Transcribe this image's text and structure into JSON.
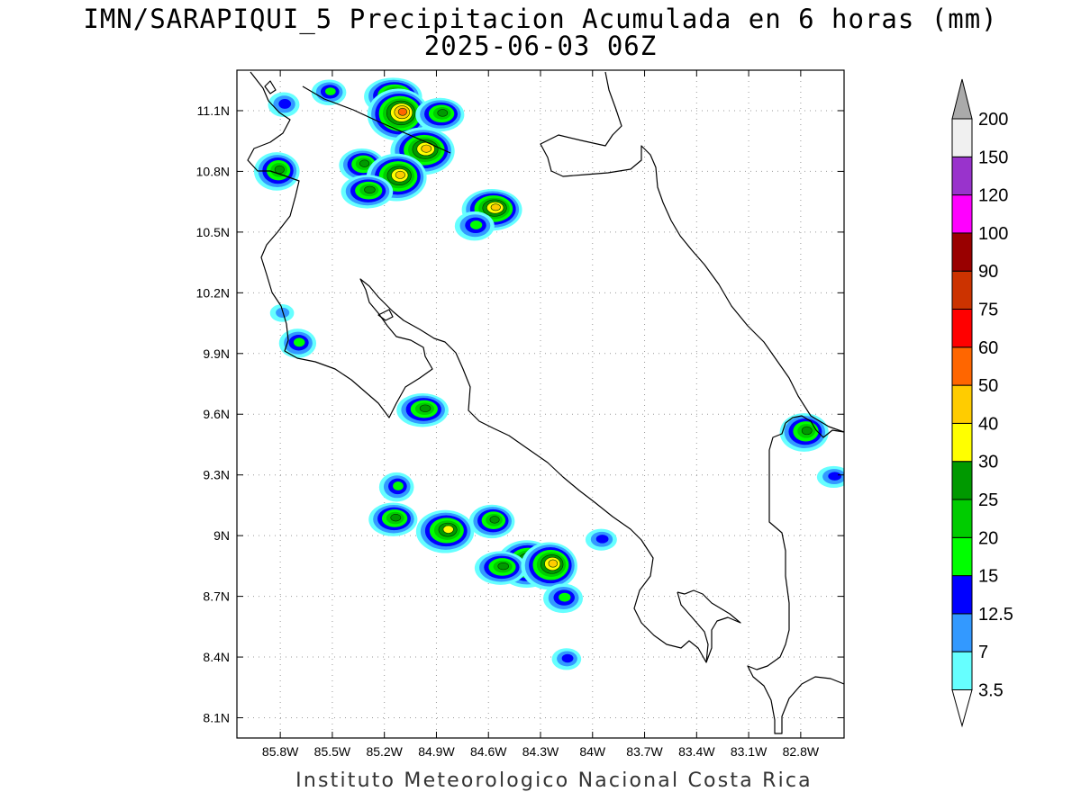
{
  "title": {
    "line1": "IMN/SARAPIQUI_5 Precipitacion Acumulada en 6 horas (mm)",
    "line2": "2025-06-03 06Z"
  },
  "map": {
    "lon_range": [
      -86.05,
      -82.55
    ],
    "lat_range": [
      8.0,
      11.3
    ],
    "lat_ticks": [
      {
        "value": 11.1,
        "label": "11.1N"
      },
      {
        "value": 10.8,
        "label": "10.8N"
      },
      {
        "value": 10.5,
        "label": "10.5N"
      },
      {
        "value": 10.2,
        "label": "10.2N"
      },
      {
        "value": 9.9,
        "label": "9.9N"
      },
      {
        "value": 9.6,
        "label": "9.6N"
      },
      {
        "value": 9.3,
        "label": "9.3N"
      },
      {
        "value": 9.0,
        "label": "9N"
      },
      {
        "value": 8.7,
        "label": "8.7N"
      },
      {
        "value": 8.4,
        "label": "8.4N"
      },
      {
        "value": 8.1,
        "label": "8.1N"
      }
    ],
    "lon_ticks": [
      {
        "value": -85.8,
        "label": "85.8W"
      },
      {
        "value": -85.5,
        "label": "85.5W"
      },
      {
        "value": -85.2,
        "label": "85.2W"
      },
      {
        "value": -84.9,
        "label": "84.9W"
      },
      {
        "value": -84.6,
        "label": "84.6W"
      },
      {
        "value": -84.3,
        "label": "84.3W"
      },
      {
        "value": -84.0,
        "label": "84W"
      },
      {
        "value": -83.7,
        "label": "83.7W"
      },
      {
        "value": -83.4,
        "label": "83.4W"
      },
      {
        "value": -83.1,
        "label": "83.1W"
      },
      {
        "value": -82.8,
        "label": "82.8W"
      }
    ],
    "grid": true,
    "coastline_color": "#000000"
  },
  "colorbar": {
    "levels": [
      "3.5",
      "7",
      "12.5",
      "15",
      "20",
      "25",
      "30",
      "40",
      "50",
      "60",
      "75",
      "90",
      "100",
      "120",
      "150",
      "200"
    ],
    "colors": [
      "#66ffff",
      "#3399ff",
      "#0000ff",
      "#00ff00",
      "#00cc00",
      "#009900",
      "#ffff00",
      "#ffcc00",
      "#ff6600",
      "#ff0000",
      "#cc3300",
      "#990000",
      "#ff00ff",
      "#9933cc",
      "#f0f0f0",
      "#aaaaaa"
    ]
  },
  "precip_cells": [
    {
      "lon": -85.52,
      "lat": 11.19,
      "max_level": "15"
    },
    {
      "lon": -85.78,
      "lat": 11.13,
      "max_level": "12.5"
    },
    {
      "lon": -85.15,
      "lat": 11.17,
      "max_level": "30"
    },
    {
      "lon": -85.12,
      "lat": 11.08,
      "max_level": "50"
    },
    {
      "lon": -84.88,
      "lat": 11.08,
      "max_level": "25"
    },
    {
      "lon": -84.98,
      "lat": 10.9,
      "max_level": "40"
    },
    {
      "lon": -85.33,
      "lat": 10.83,
      "max_level": "25"
    },
    {
      "lon": -85.13,
      "lat": 10.77,
      "max_level": "40"
    },
    {
      "lon": -85.3,
      "lat": 10.7,
      "max_level": "25"
    },
    {
      "lon": -85.82,
      "lat": 10.8,
      "max_level": "25"
    },
    {
      "lon": -84.58,
      "lat": 10.61,
      "max_level": "40"
    },
    {
      "lon": -84.68,
      "lat": 10.53,
      "max_level": "15"
    },
    {
      "lon": -85.79,
      "lat": 10.1,
      "max_level": "7"
    },
    {
      "lon": -85.7,
      "lat": 9.95,
      "max_level": "15"
    },
    {
      "lon": -84.98,
      "lat": 9.62,
      "max_level": "25"
    },
    {
      "lon": -85.13,
      "lat": 9.24,
      "max_level": "15"
    },
    {
      "lon": -85.15,
      "lat": 9.08,
      "max_level": "25"
    },
    {
      "lon": -84.85,
      "lat": 9.02,
      "max_level": "30"
    },
    {
      "lon": -84.58,
      "lat": 9.07,
      "max_level": "25"
    },
    {
      "lon": -84.38,
      "lat": 8.86,
      "max_level": "40"
    },
    {
      "lon": -84.53,
      "lat": 8.84,
      "max_level": "25"
    },
    {
      "lon": -84.25,
      "lat": 8.85,
      "max_level": "40"
    },
    {
      "lon": -83.95,
      "lat": 8.98,
      "max_level": "12.5"
    },
    {
      "lon": -84.17,
      "lat": 8.69,
      "max_level": "15"
    },
    {
      "lon": -84.15,
      "lat": 8.39,
      "max_level": "12.5"
    },
    {
      "lon": -82.78,
      "lat": 9.51,
      "max_level": "25"
    },
    {
      "lon": -82.61,
      "lat": 9.29,
      "max_level": "12.5"
    }
  ],
  "credit": "Instituto Meteorologico Nacional Costa Rica"
}
